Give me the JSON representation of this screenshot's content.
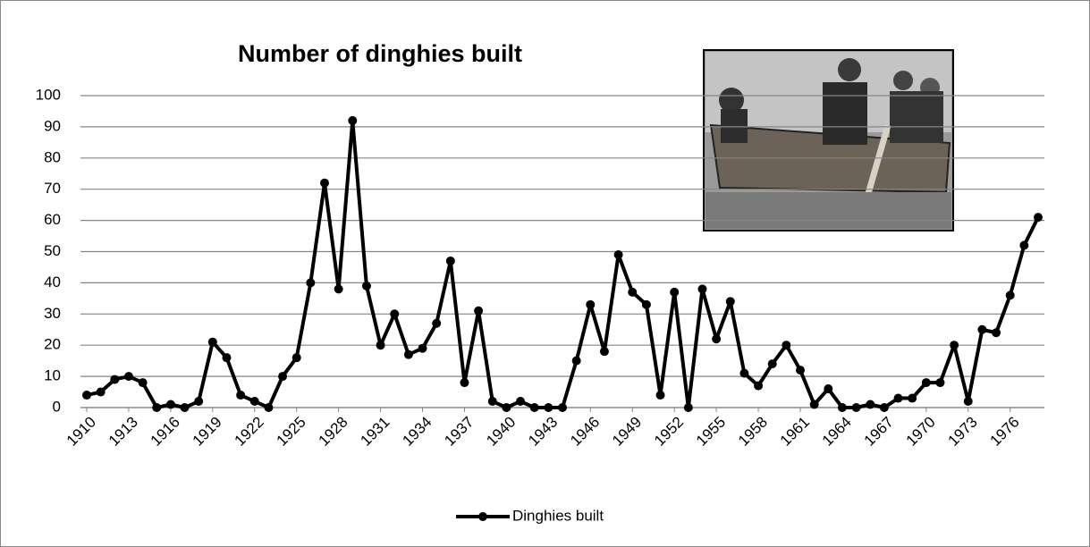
{
  "chart_data": {
    "type": "line",
    "title": "Number of dinghies built",
    "x": [
      1910,
      1911,
      1912,
      1913,
      1914,
      1915,
      1916,
      1917,
      1918,
      1919,
      1920,
      1921,
      1922,
      1923,
      1924,
      1925,
      1926,
      1927,
      1928,
      1929,
      1930,
      1931,
      1932,
      1933,
      1934,
      1935,
      1936,
      1937,
      1938,
      1939,
      1940,
      1941,
      1942,
      1943,
      1944,
      1945,
      1946,
      1947,
      1948,
      1949,
      1950,
      1951,
      1952,
      1953,
      1954,
      1955,
      1956,
      1957,
      1958,
      1959,
      1960,
      1961,
      1962,
      1963,
      1964,
      1965,
      1966,
      1967,
      1968,
      1969,
      1970,
      1971,
      1972,
      1973,
      1974,
      1975,
      1976,
      1977,
      1978
    ],
    "xlim": [
      1910,
      1978
    ],
    "xticks": [
      1910,
      1913,
      1916,
      1919,
      1922,
      1925,
      1928,
      1931,
      1934,
      1937,
      1940,
      1943,
      1946,
      1949,
      1952,
      1955,
      1958,
      1961,
      1964,
      1967,
      1970,
      1973,
      1976
    ],
    "series": [
      {
        "name": "Dinghies built",
        "color": "#000000",
        "values": [
          4,
          5,
          9,
          10,
          8,
          0,
          1,
          0,
          2,
          21,
          16,
          4,
          2,
          0,
          10,
          16,
          40,
          72,
          38,
          92,
          39,
          20,
          30,
          17,
          19,
          27,
          47,
          8,
          31,
          2,
          0,
          2,
          0,
          0,
          0,
          15,
          33,
          18,
          49,
          37,
          33,
          4,
          37,
          0,
          38,
          22,
          34,
          11,
          7,
          14,
          20,
          12,
          1,
          6,
          0,
          0,
          1,
          0,
          3,
          3,
          8,
          8,
          20,
          2,
          25,
          24,
          36,
          52,
          61
        ]
      }
    ],
    "ylim": [
      0,
      100
    ],
    "yticks": [
      0,
      10,
      20,
      30,
      40,
      50,
      60,
      70,
      80,
      90,
      100
    ],
    "grid": true,
    "legend": "bottom"
  }
}
